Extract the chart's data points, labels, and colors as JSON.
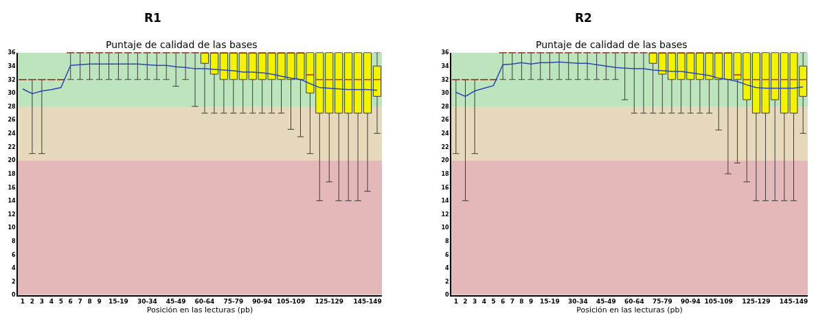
{
  "chart_data": [
    {
      "type": "box",
      "title": "R1",
      "subtitle": "Puntaje de calidad de las bases",
      "xlabel": "Posición en las lecturas (pb)",
      "categories": [
        "1",
        "2",
        "3",
        "4",
        "5",
        "6",
        "7",
        "8",
        "9",
        null,
        "15-19",
        null,
        null,
        "30-34",
        null,
        null,
        "45-49",
        null,
        null,
        "60-64",
        null,
        null,
        "75-79",
        null,
        null,
        "90-94",
        null,
        null,
        "105-109",
        null,
        null,
        null,
        "125-129",
        null,
        null,
        null,
        "145-149",
        null
      ],
      "ylim": [
        0,
        36
      ],
      "yticks": [
        0,
        2,
        4,
        6,
        8,
        10,
        12,
        14,
        16,
        18,
        20,
        22,
        24,
        26,
        28,
        30,
        32,
        34,
        36
      ],
      "bands": [
        {
          "axis": "y",
          "from": 28,
          "to": 36,
          "color": "#bde5bd"
        },
        {
          "axis": "y",
          "from": 20,
          "to": 28,
          "color": "#e7d9bb"
        },
        {
          "axis": "y",
          "from": 0,
          "to": 20,
          "color": "#e4b8b8"
        }
      ],
      "series": [
        {
          "type": "box",
          "colors": [
            "#3a3a3a",
            "#3a3a3a",
            "#3a3a3a",
            "#3a3a3a",
            "#3a3a3a",
            "#3a3a3a",
            "#3a3a3a",
            "#3a3a3a",
            "#3a3a3a",
            "#3a3a3a",
            "#3a3a3a",
            "#3a3a3a",
            "#3a3a3a",
            "#3a3a3a",
            "#3a3a3a",
            "#3a3a3a",
            "#3a3a3a",
            "#3a3a3a",
            "#3a3a3a",
            "#f3f300",
            "#f3f300",
            "#f3f300",
            "#f3f300",
            "#f3f300",
            "#f3f300",
            "#f3f300",
            "#f3f300",
            "#f3f300",
            "#f3f300",
            "#f3f300",
            "#f3f300",
            "#f3f300",
            "#f3f300",
            "#f3f300",
            "#f3f300",
            "#f3f300",
            "#f3f300",
            "#f3f300"
          ],
          "boxes": [
            {
              "low": 32,
              "q1": 32,
              "median": 32,
              "q3": 32,
              "high": 32
            },
            {
              "low": 21,
              "q1": 32,
              "median": 32,
              "q3": 32,
              "high": 32
            },
            {
              "low": 21,
              "q1": 32,
              "median": 32,
              "q3": 32,
              "high": 32
            },
            {
              "low": 32,
              "q1": 32,
              "median": 32,
              "q3": 32,
              "high": 32
            },
            {
              "low": 32,
              "q1": 32,
              "median": 32,
              "q3": 32,
              "high": 32
            },
            {
              "low": 32,
              "q1": 36,
              "median": 36,
              "q3": 36,
              "high": 36
            },
            {
              "low": 32,
              "q1": 36,
              "median": 36,
              "q3": 36,
              "high": 36
            },
            {
              "low": 32,
              "q1": 36,
              "median": 36,
              "q3": 36,
              "high": 36
            },
            {
              "low": 32,
              "q1": 36,
              "median": 36,
              "q3": 36,
              "high": 36
            },
            {
              "low": 32,
              "q1": 36,
              "median": 36,
              "q3": 36,
              "high": 36
            },
            {
              "low": 32,
              "q1": 36,
              "median": 36,
              "q3": 36,
              "high": 36
            },
            {
              "low": 32,
              "q1": 36,
              "median": 36,
              "q3": 36,
              "high": 36
            },
            {
              "low": 32,
              "q1": 36,
              "median": 36,
              "q3": 36,
              "high": 36
            },
            {
              "low": 32,
              "q1": 36,
              "median": 36,
              "q3": 36,
              "high": 36
            },
            {
              "low": 32,
              "q1": 36,
              "median": 36,
              "q3": 36,
              "high": 36
            },
            {
              "low": 32,
              "q1": 36,
              "median": 36,
              "q3": 36,
              "high": 36
            },
            {
              "low": 31,
              "q1": 36,
              "median": 36,
              "q3": 36,
              "high": 36
            },
            {
              "low": 32,
              "q1": 36,
              "median": 36,
              "q3": 36,
              "high": 36
            },
            {
              "low": 28,
              "q1": 36,
              "median": 36,
              "q3": 36,
              "high": 36
            },
            {
              "low": 27,
              "q1": 34.4,
              "median": 36,
              "q3": 36,
              "high": 36
            },
            {
              "low": 27,
              "q1": 32.8,
              "median": 36,
              "q3": 36,
              "high": 36
            },
            {
              "low": 27,
              "q1": 32,
              "median": 36,
              "q3": 36,
              "high": 36
            },
            {
              "low": 27,
              "q1": 32,
              "median": 36,
              "q3": 36,
              "high": 36
            },
            {
              "low": 27,
              "q1": 32,
              "median": 36,
              "q3": 36,
              "high": 36
            },
            {
              "low": 27,
              "q1": 32,
              "median": 36,
              "q3": 36,
              "high": 36
            },
            {
              "low": 27,
              "q1": 32,
              "median": 36,
              "q3": 36,
              "high": 36
            },
            {
              "low": 27,
              "q1": 32,
              "median": 36,
              "q3": 36,
              "high": 36
            },
            {
              "low": 27,
              "q1": 32,
              "median": 36,
              "q3": 36,
              "high": 36
            },
            {
              "low": 24.6,
              "q1": 32,
              "median": 36,
              "q3": 36,
              "high": 36
            },
            {
              "low": 23.5,
              "q1": 32,
              "median": 36,
              "q3": 36,
              "high": 36
            },
            {
              "low": 21,
              "q1": 30,
              "median": 32.7,
              "q3": 36,
              "high": 36
            },
            {
              "low": 14,
              "q1": 27,
              "median": 32,
              "q3": 36,
              "high": 36
            },
            {
              "low": 16.8,
              "q1": 27,
              "median": 32,
              "q3": 36,
              "high": 36
            },
            {
              "low": 14,
              "q1": 27,
              "median": 32,
              "q3": 36,
              "high": 36
            },
            {
              "low": 14,
              "q1": 27,
              "median": 32,
              "q3": 36,
              "high": 36
            },
            {
              "low": 14,
              "q1": 27,
              "median": 32,
              "q3": 36,
              "high": 36
            },
            {
              "low": 15.4,
              "q1": 27,
              "median": 32,
              "q3": 36,
              "high": 36
            },
            {
              "low": 24,
              "q1": 29.5,
              "median": 32,
              "q3": 34,
              "high": 36
            }
          ]
        },
        {
          "type": "line",
          "color": "#2a46b4",
          "values": [
            30.6,
            29.9,
            30.3,
            30.5,
            30.8,
            34.1,
            34.2,
            34.3,
            34.3,
            34.3,
            34.3,
            34.3,
            34.3,
            34.2,
            34.1,
            34.1,
            33.9,
            33.8,
            33.6,
            33.6,
            33.5,
            33.4,
            33.3,
            33.1,
            33.1,
            33.0,
            32.8,
            32.5,
            32.2,
            32.0,
            31.4,
            30.8,
            30.7,
            30.6,
            30.5,
            30.5,
            30.5,
            30.4
          ]
        }
      ]
    },
    {
      "type": "box",
      "title": "R2",
      "subtitle": "Puntaje de calidad de las bases",
      "xlabel": "Posición en las lecturas (pb)",
      "categories": [
        "1",
        "2",
        "3",
        "4",
        "5",
        "6",
        "7",
        "8",
        "9",
        null,
        "15-19",
        null,
        null,
        "30-34",
        null,
        null,
        "45-49",
        null,
        null,
        "60-64",
        null,
        null,
        "75-79",
        null,
        null,
        "90-94",
        null,
        null,
        "105-109",
        null,
        null,
        null,
        "125-129",
        null,
        null,
        null,
        "145-149",
        null
      ],
      "ylim": [
        0,
        36
      ],
      "yticks": [
        0,
        2,
        4,
        6,
        8,
        10,
        12,
        14,
        16,
        18,
        20,
        22,
        24,
        26,
        28,
        30,
        32,
        34,
        36
      ],
      "bands": [
        {
          "axis": "y",
          "from": 28,
          "to": 36,
          "color": "#bde5bd"
        },
        {
          "axis": "y",
          "from": 20,
          "to": 28,
          "color": "#e7d9bb"
        },
        {
          "axis": "y",
          "from": 0,
          "to": 20,
          "color": "#e4b8b8"
        }
      ],
      "series": [
        {
          "type": "box",
          "colors": [
            "#3a3a3a",
            "#3a3a3a",
            "#3a3a3a",
            "#3a3a3a",
            "#3a3a3a",
            "#3a3a3a",
            "#3a3a3a",
            "#3a3a3a",
            "#3a3a3a",
            "#3a3a3a",
            "#3a3a3a",
            "#3a3a3a",
            "#3a3a3a",
            "#3a3a3a",
            "#3a3a3a",
            "#3a3a3a",
            "#3a3a3a",
            "#3a3a3a",
            "#3a3a3a",
            "#3a3a3a",
            "#3a3a3a",
            "#f3f300",
            "#f3f300",
            "#f3f300",
            "#f3f300",
            "#f3f300",
            "#f3f300",
            "#f3f300",
            "#f3f300",
            "#f3f300",
            "#f3f300",
            "#f3f300",
            "#f3f300",
            "#f3f300",
            "#f3f300",
            "#f3f300",
            "#f3f300",
            "#f3f300"
          ],
          "boxes": [
            {
              "low": 21,
              "q1": 32,
              "median": 32,
              "q3": 32,
              "high": 32
            },
            {
              "low": 14,
              "q1": 32,
              "median": 32,
              "q3": 32,
              "high": 32
            },
            {
              "low": 21,
              "q1": 32,
              "median": 32,
              "q3": 32,
              "high": 32
            },
            {
              "low": 32,
              "q1": 32,
              "median": 32,
              "q3": 32,
              "high": 32
            },
            {
              "low": 32,
              "q1": 32,
              "median": 32,
              "q3": 32,
              "high": 32
            },
            {
              "low": 32,
              "q1": 36,
              "median": 36,
              "q3": 36,
              "high": 36
            },
            {
              "low": 32,
              "q1": 36,
              "median": 36,
              "q3": 36,
              "high": 36
            },
            {
              "low": 32,
              "q1": 36,
              "median": 36,
              "q3": 36,
              "high": 36
            },
            {
              "low": 32,
              "q1": 36,
              "median": 36,
              "q3": 36,
              "high": 36
            },
            {
              "low": 32,
              "q1": 36,
              "median": 36,
              "q3": 36,
              "high": 36
            },
            {
              "low": 32,
              "q1": 36,
              "median": 36,
              "q3": 36,
              "high": 36
            },
            {
              "low": 32,
              "q1": 36,
              "median": 36,
              "q3": 36,
              "high": 36
            },
            {
              "low": 32,
              "q1": 36,
              "median": 36,
              "q3": 36,
              "high": 36
            },
            {
              "low": 32,
              "q1": 36,
              "median": 36,
              "q3": 36,
              "high": 36
            },
            {
              "low": 32,
              "q1": 36,
              "median": 36,
              "q3": 36,
              "high": 36
            },
            {
              "low": 32,
              "q1": 36,
              "median": 36,
              "q3": 36,
              "high": 36
            },
            {
              "low": 32,
              "q1": 36,
              "median": 36,
              "q3": 36,
              "high": 36
            },
            {
              "low": 32,
              "q1": 36,
              "median": 36,
              "q3": 36,
              "high": 36
            },
            {
              "low": 29,
              "q1": 36,
              "median": 36,
              "q3": 36,
              "high": 36
            },
            {
              "low": 27,
              "q1": 36,
              "median": 36,
              "q3": 36,
              "high": 36
            },
            {
              "low": 27,
              "q1": 36,
              "median": 36,
              "q3": 36,
              "high": 36
            },
            {
              "low": 27,
              "q1": 34.4,
              "median": 36,
              "q3": 36,
              "high": 36
            },
            {
              "low": 27,
              "q1": 32.8,
              "median": 36,
              "q3": 36,
              "high": 36
            },
            {
              "low": 27,
              "q1": 32,
              "median": 36,
              "q3": 36,
              "high": 36
            },
            {
              "low": 27,
              "q1": 32,
              "median": 36,
              "q3": 36,
              "high": 36
            },
            {
              "low": 27,
              "q1": 32,
              "median": 36,
              "q3": 36,
              "high": 36
            },
            {
              "low": 27,
              "q1": 32,
              "median": 36,
              "q3": 36,
              "high": 36
            },
            {
              "low": 27,
              "q1": 32,
              "median": 36,
              "q3": 36,
              "high": 36
            },
            {
              "low": 24.5,
              "q1": 32,
              "median": 36,
              "q3": 36,
              "high": 36
            },
            {
              "low": 18,
              "q1": 32,
              "median": 36,
              "q3": 36,
              "high": 36
            },
            {
              "low": 19.6,
              "q1": 32,
              "median": 32.7,
              "q3": 36,
              "high": 36
            },
            {
              "low": 16.8,
              "q1": 29,
              "median": 32,
              "q3": 36,
              "high": 36
            },
            {
              "low": 14,
              "q1": 27,
              "median": 32,
              "q3": 36,
              "high": 36
            },
            {
              "low": 14,
              "q1": 27,
              "median": 32,
              "q3": 36,
              "high": 36
            },
            {
              "low": 14,
              "q1": 29,
              "median": 32,
              "q3": 36,
              "high": 36
            },
            {
              "low": 14,
              "q1": 27,
              "median": 32,
              "q3": 36,
              "high": 36
            },
            {
              "low": 14,
              "q1": 27,
              "median": 32,
              "q3": 36,
              "high": 36
            },
            {
              "low": 24,
              "q1": 29.5,
              "median": 32,
              "q3": 34,
              "high": 36
            }
          ]
        },
        {
          "type": "line",
          "color": "#2a46b4",
          "values": [
            30.1,
            29.5,
            30.3,
            30.7,
            31.1,
            34.2,
            34.3,
            34.5,
            34.3,
            34.5,
            34.5,
            34.6,
            34.5,
            34.4,
            34.4,
            34.2,
            34.0,
            33.8,
            33.7,
            33.6,
            33.6,
            33.4,
            33.3,
            33.2,
            33.2,
            33.0,
            32.8,
            32.6,
            32.2,
            32.0,
            31.7,
            31.2,
            30.8,
            30.7,
            30.7,
            30.7,
            30.7,
            30.9
          ]
        }
      ]
    }
  ]
}
